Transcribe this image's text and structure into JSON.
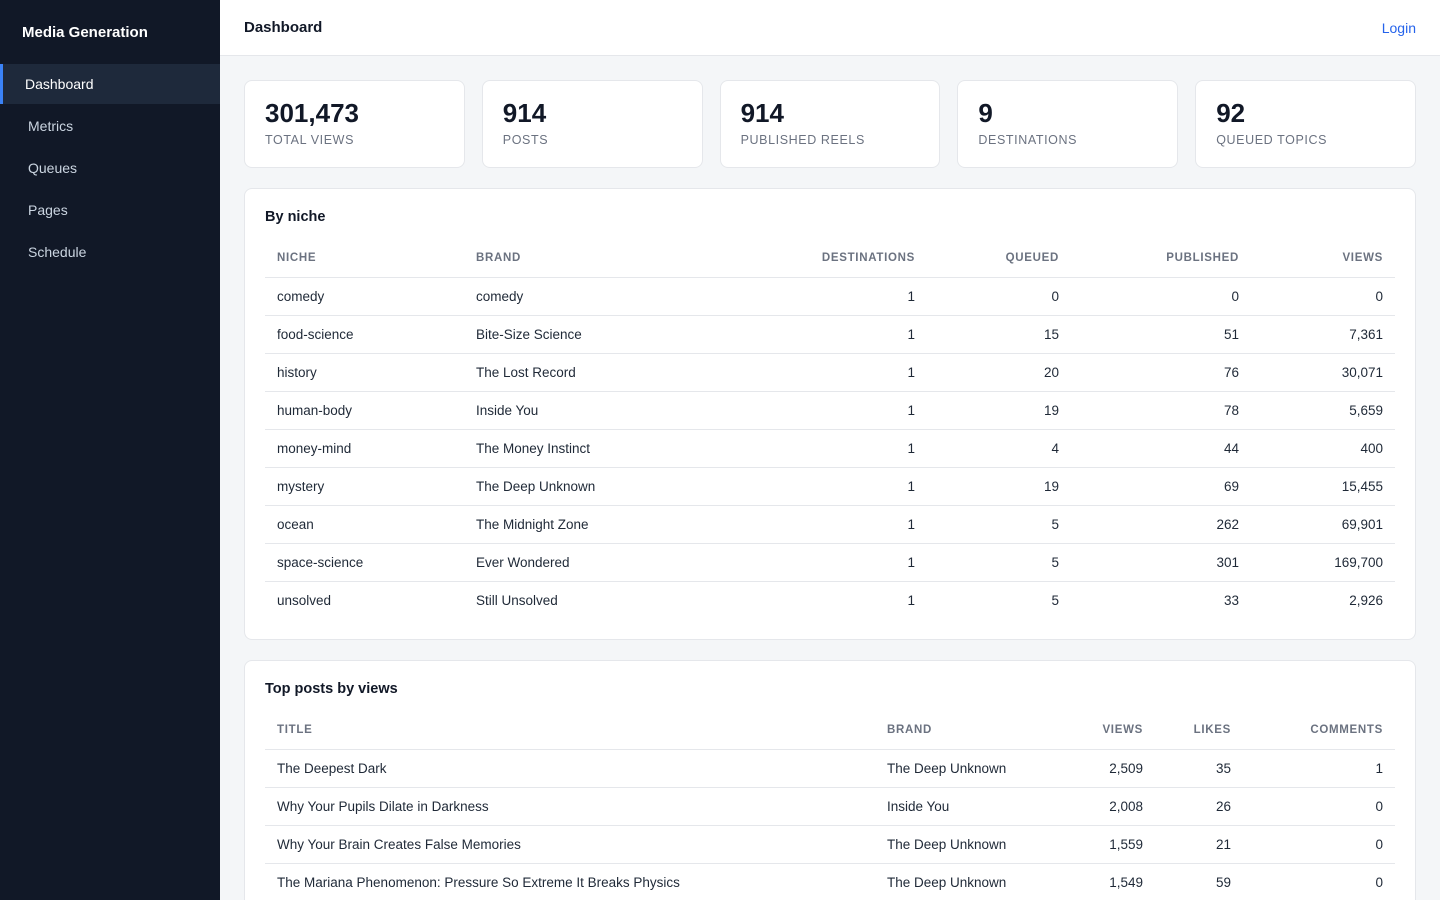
{
  "sidebar": {
    "brand": "Media Generation",
    "items": [
      {
        "label": "Dashboard",
        "active": true
      },
      {
        "label": "Metrics",
        "active": false
      },
      {
        "label": "Queues",
        "active": false
      },
      {
        "label": "Pages",
        "active": false
      },
      {
        "label": "Schedule",
        "active": false
      }
    ]
  },
  "header": {
    "title": "Dashboard",
    "login_label": "Login"
  },
  "stats": [
    {
      "value": "301,473",
      "label": "TOTAL VIEWS"
    },
    {
      "value": "914",
      "label": "POSTS"
    },
    {
      "value": "914",
      "label": "PUBLISHED REELS"
    },
    {
      "value": "9",
      "label": "DESTINATIONS"
    },
    {
      "value": "92",
      "label": "QUEUED TOPICS"
    }
  ],
  "by_niche": {
    "title": "By niche",
    "columns": [
      "NICHE",
      "BRAND",
      "DESTINATIONS",
      "QUEUED",
      "PUBLISHED",
      "VIEWS"
    ],
    "rows": [
      [
        "comedy",
        "comedy",
        "1",
        "0",
        "0",
        "0"
      ],
      [
        "food-science",
        "Bite-Size Science",
        "1",
        "15",
        "51",
        "7,361"
      ],
      [
        "history",
        "The Lost Record",
        "1",
        "20",
        "76",
        "30,071"
      ],
      [
        "human-body",
        "Inside You",
        "1",
        "19",
        "78",
        "5,659"
      ],
      [
        "money-mind",
        "The Money Instinct",
        "1",
        "4",
        "44",
        "400"
      ],
      [
        "mystery",
        "The Deep Unknown",
        "1",
        "19",
        "69",
        "15,455"
      ],
      [
        "ocean",
        "The Midnight Zone",
        "1",
        "5",
        "262",
        "69,901"
      ],
      [
        "space-science",
        "Ever Wondered",
        "1",
        "5",
        "301",
        "169,700"
      ],
      [
        "unsolved",
        "Still Unsolved",
        "1",
        "5",
        "33",
        "2,926"
      ]
    ]
  },
  "top_posts": {
    "title": "Top posts by views",
    "columns": [
      "TITLE",
      "BRAND",
      "VIEWS",
      "LIKES",
      "COMMENTS"
    ],
    "rows": [
      [
        "The Deepest Dark",
        "The Deep Unknown",
        "2,509",
        "35",
        "1"
      ],
      [
        "Why Your Pupils Dilate in Darkness",
        "Inside You",
        "2,008",
        "26",
        "0"
      ],
      [
        "Why Your Brain Creates False Memories",
        "The Deep Unknown",
        "1,559",
        "21",
        "0"
      ],
      [
        "The Mariana Phenomenon: Pressure So Extreme It Breaks Physics",
        "The Deep Unknown",
        "1,549",
        "59",
        "0"
      ]
    ]
  }
}
